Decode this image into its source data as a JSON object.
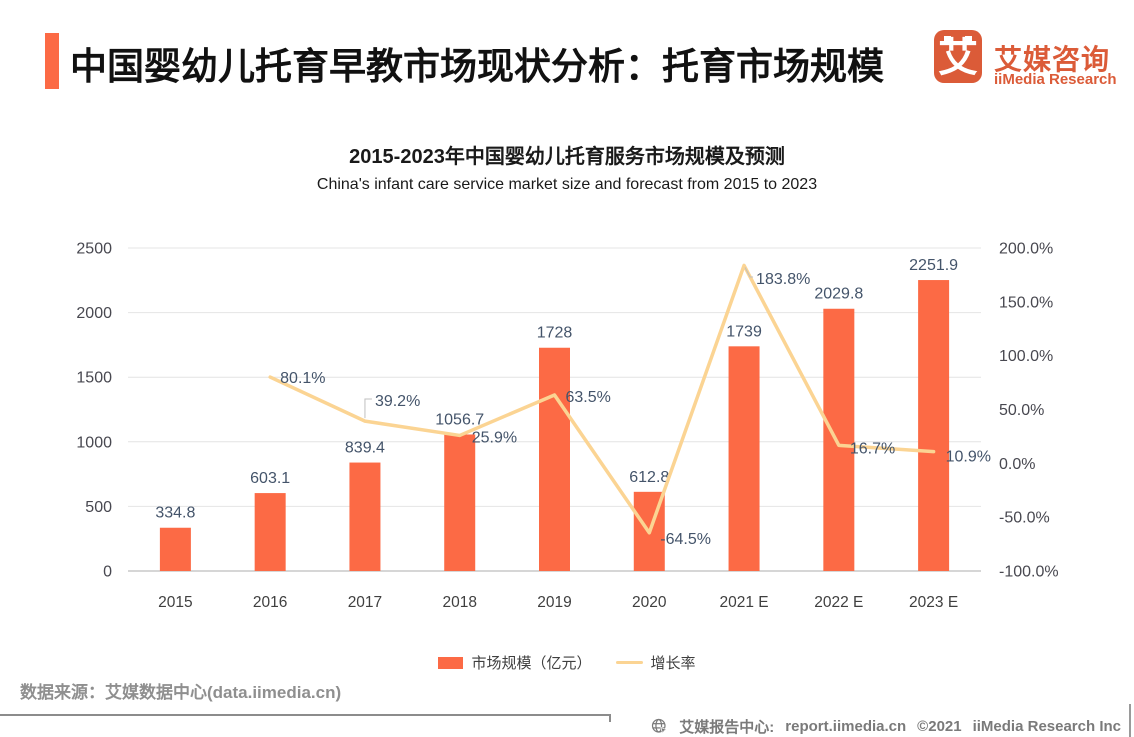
{
  "colors": {
    "bar": "#FC6A45",
    "line": "#FBD493",
    "brand": "#DB5B38",
    "grid": "#E4E4E4",
    "axis_line": "#C8C8C8",
    "callout": "#BFBFBF"
  },
  "header": {
    "title": "中国婴幼儿托育早教市场现状分析：托育市场规模",
    "logo": {
      "mark": "艾",
      "name_cn": "艾媒咨询",
      "name_en": "iiMedia Research"
    }
  },
  "chart": {
    "title_cn": "2015-2023年中国婴幼儿托育服务市场规模及预测",
    "title_en": "China's infant care service market size and forecast from 2015 to 2023"
  },
  "chart_data": {
    "type": "bar+line",
    "categories": [
      "2015",
      "2016",
      "2017",
      "2018",
      "2019",
      "2020",
      "2021 E",
      "2022 E",
      "2023 E"
    ],
    "series": [
      {
        "name": "市场规模（亿元）",
        "type": "bar",
        "axis": "left",
        "values": [
          334.8,
          603.1,
          839.4,
          1056.7,
          1728,
          612.8,
          1739,
          2029.8,
          2251.9
        ],
        "labels": [
          "334.8",
          "603.1",
          "839.4",
          "1056.7",
          "1728",
          "612.8",
          "1739",
          "2029.8",
          "2251.9"
        ]
      },
      {
        "name": "增长率",
        "type": "line",
        "axis": "right",
        "values": [
          null,
          80.1,
          39.2,
          25.9,
          63.5,
          -64.5,
          183.8,
          16.7,
          10.9
        ],
        "labels": [
          null,
          "80.1%",
          "39.2%",
          "25.9%",
          "63.5%",
          "-64.5%",
          "183.8%",
          "16.7%",
          "10.9%"
        ]
      }
    ],
    "left_axis": {
      "min": 0,
      "max": 2500,
      "step": 500,
      "ticks": [
        "0",
        "500",
        "1000",
        "1500",
        "2000",
        "2500"
      ]
    },
    "right_axis": {
      "min": -100,
      "max": 200,
      "step": 50,
      "ticks": [
        "200.0%",
        "150.0%",
        "100.0%",
        "50.0%",
        "0.0%",
        "-50.0%",
        "-100.0%"
      ]
    },
    "grid": true,
    "legend_position": "bottom"
  },
  "legend": {
    "items": [
      {
        "label": "市场规模（亿元）",
        "swatch": "bar"
      },
      {
        "label": "增长率",
        "swatch": "line"
      }
    ]
  },
  "source": {
    "text": "数据来源：艾媒数据中心(data.iimedia.cn)"
  },
  "footer": {
    "label": "艾媒报告中心:",
    "url": "report.iimedia.cn",
    "copyright": "©2021",
    "company": "iiMedia Research  Inc"
  }
}
